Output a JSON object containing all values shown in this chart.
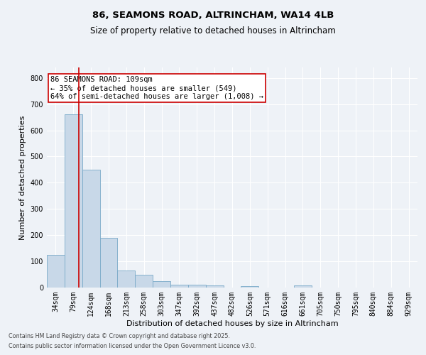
{
  "title1": "86, SEAMONS ROAD, ALTRINCHAM, WA14 4LB",
  "title2": "Size of property relative to detached houses in Altrincham",
  "xlabel": "Distribution of detached houses by size in Altrincham",
  "ylabel": "Number of detached properties",
  "categories": [
    "34sqm",
    "79sqm",
    "124sqm",
    "168sqm",
    "213sqm",
    "258sqm",
    "303sqm",
    "347sqm",
    "392sqm",
    "437sqm",
    "482sqm",
    "526sqm",
    "571sqm",
    "616sqm",
    "661sqm",
    "705sqm",
    "750sqm",
    "795sqm",
    "840sqm",
    "884sqm",
    "929sqm"
  ],
  "values": [
    125,
    660,
    450,
    190,
    65,
    48,
    25,
    12,
    12,
    7,
    0,
    5,
    0,
    0,
    7,
    0,
    0,
    0,
    0,
    0,
    0
  ],
  "bar_color": "#c8d8e8",
  "bar_edge_color": "#7aaac8",
  "vline_x": 1.32,
  "vline_color": "#cc0000",
  "annotation_text": "86 SEAMONS ROAD: 109sqm\n← 35% of detached houses are smaller (549)\n64% of semi-detached houses are larger (1,008) →",
  "annotation_box_color": "#cc0000",
  "ylim": [
    0,
    840
  ],
  "yticks": [
    0,
    100,
    200,
    300,
    400,
    500,
    600,
    700,
    800
  ],
  "footer1": "Contains HM Land Registry data © Crown copyright and database right 2025.",
  "footer2": "Contains public sector information licensed under the Open Government Licence v3.0.",
  "bg_color": "#eef2f7",
  "grid_color": "#ffffff",
  "title_fontsize": 9.5,
  "subtitle_fontsize": 8.5,
  "axis_label_fontsize": 8,
  "tick_fontsize": 7,
  "annotation_fontsize": 7.5,
  "footer_fontsize": 5.8
}
